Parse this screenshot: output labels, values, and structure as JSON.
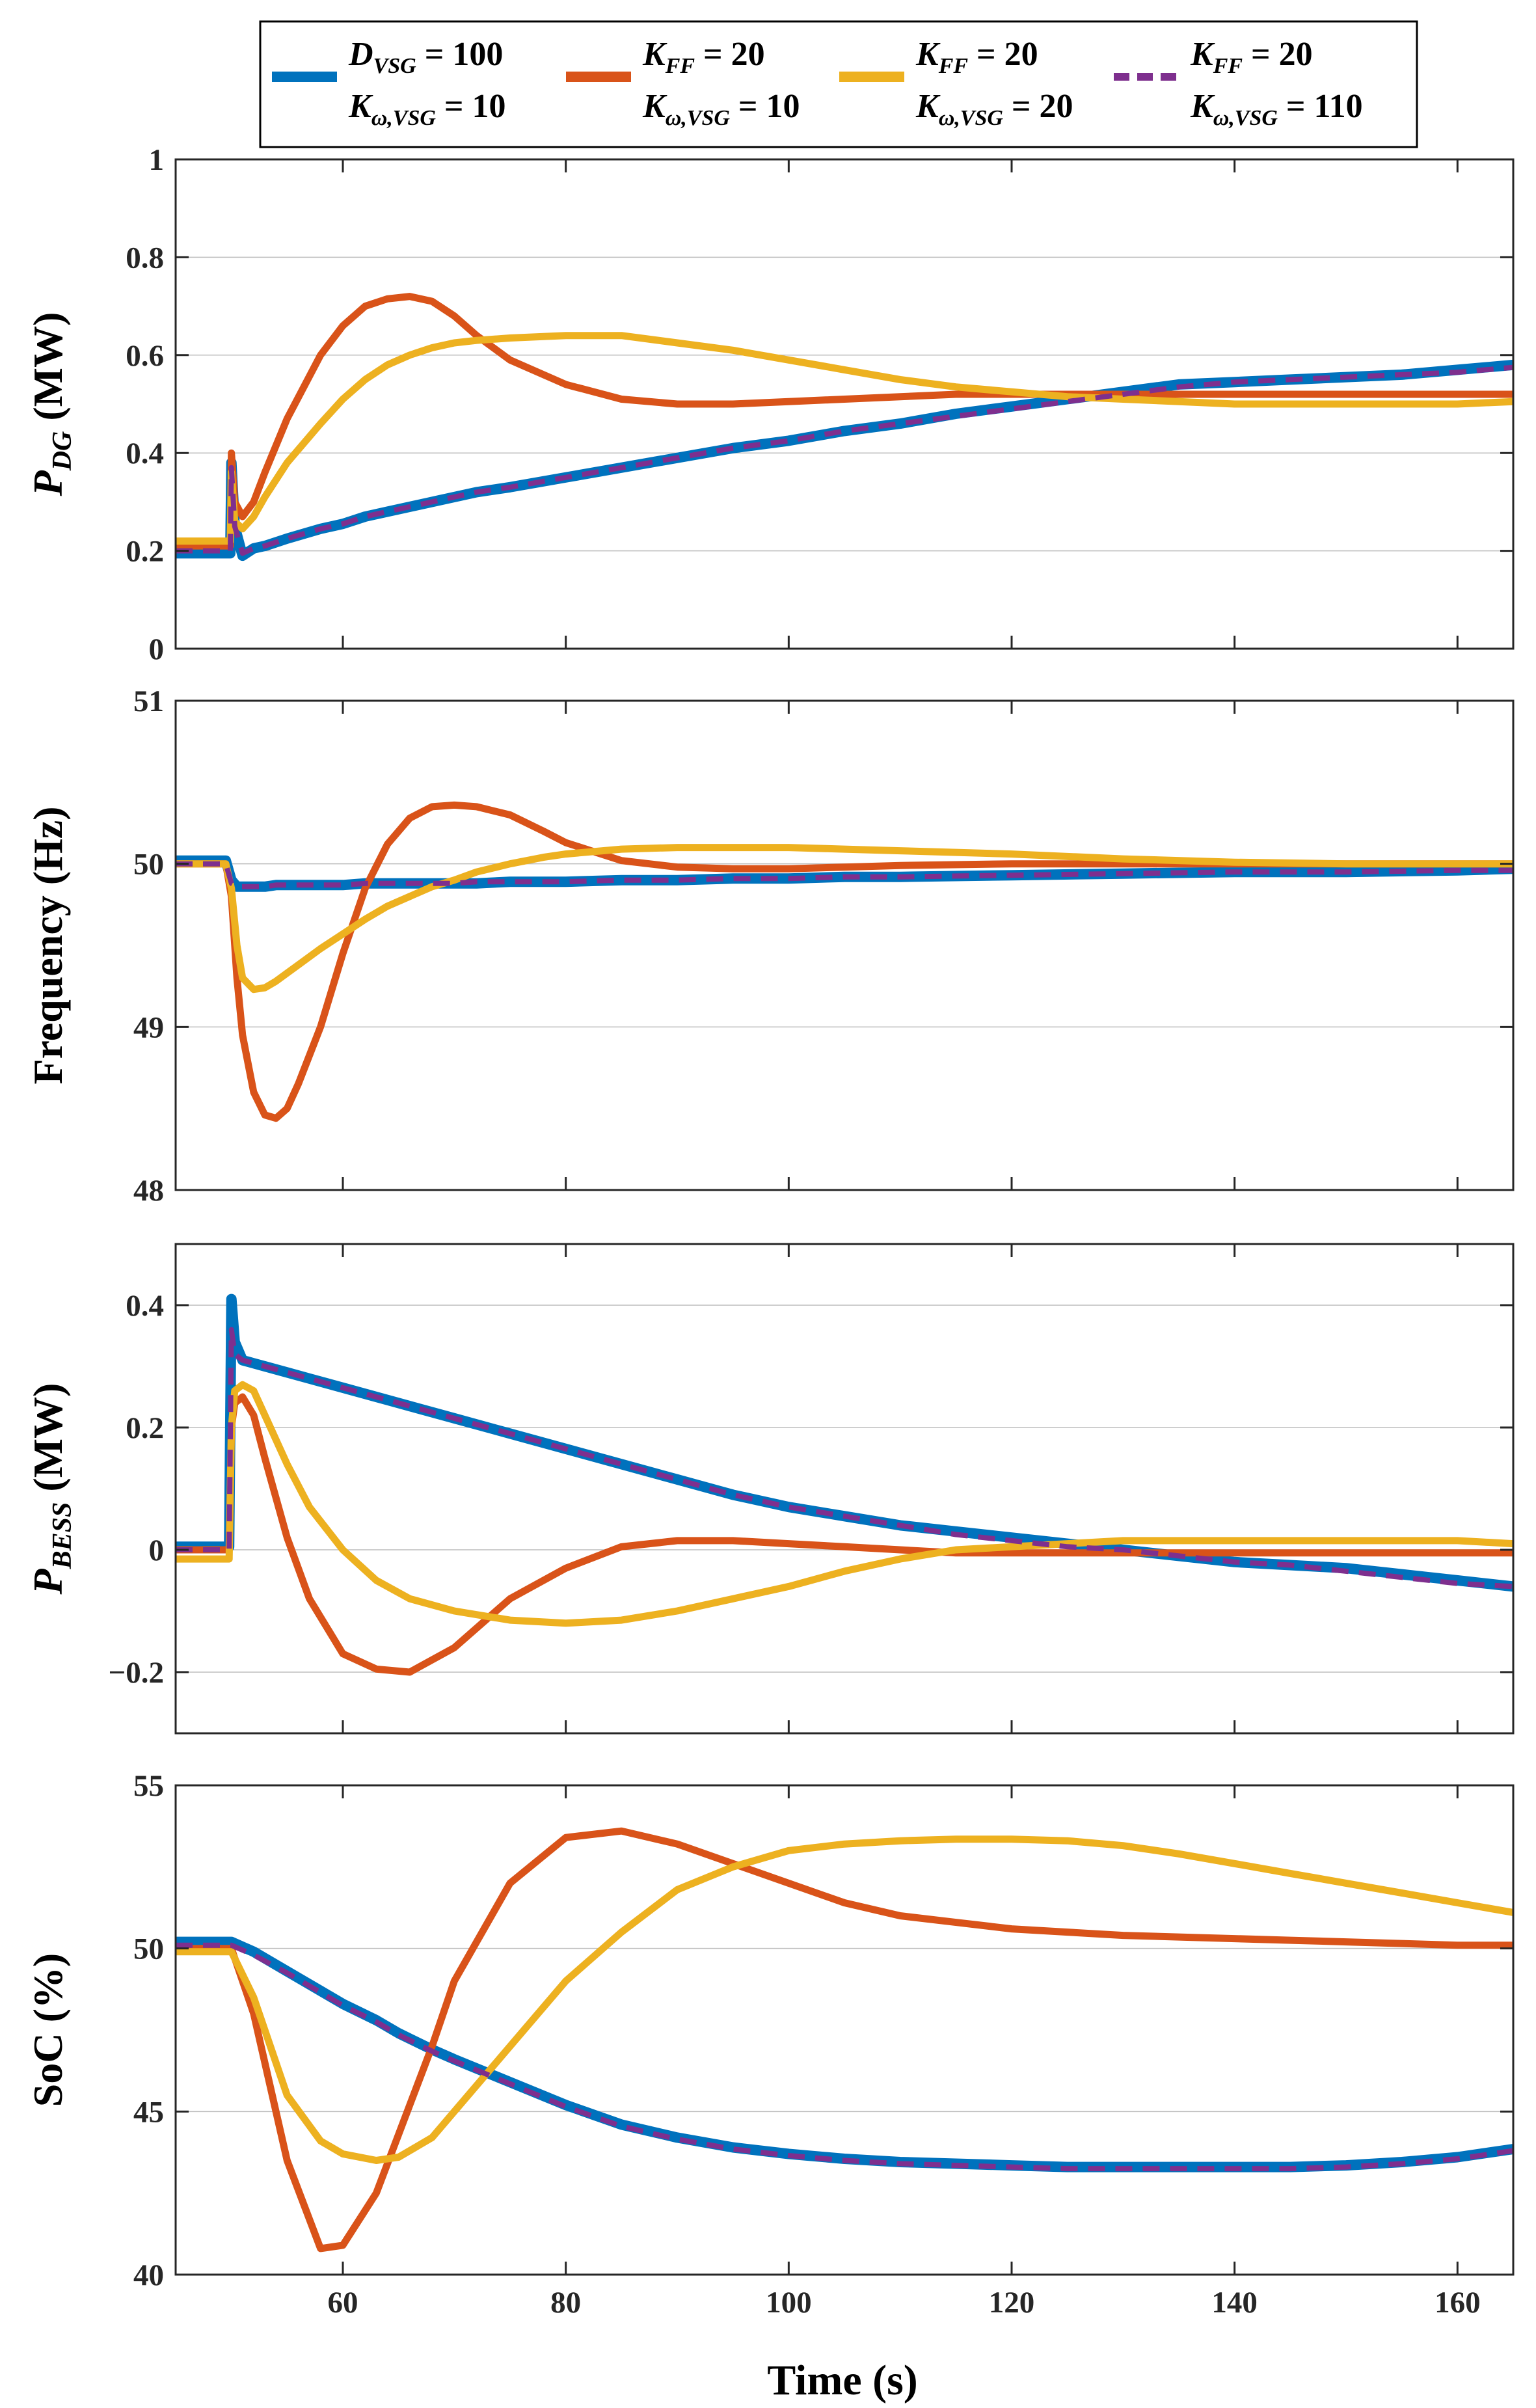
{
  "legend": [
    {
      "name": "D_VSG = 100, K_ω,VSG = 10",
      "line1": {
        "sym": "D",
        "sub": "VSG",
        "rest": " = 100"
      },
      "line2": {
        "sym": "K",
        "sub": "ω,VSG",
        "rest": " = 10"
      },
      "color": "#0072BD",
      "style": "solid"
    },
    {
      "name": "K_FF = 20, K_ω,VSG = 10",
      "line1": {
        "sym": "K",
        "sub": "FF",
        "rest": " = 20"
      },
      "line2": {
        "sym": "K",
        "sub": "ω,VSG",
        "rest": " = 10"
      },
      "color": "#D95319",
      "style": "solid"
    },
    {
      "name": "K_FF = 20, K_ω,VSG = 20",
      "line1": {
        "sym": "K",
        "sub": "FF",
        "rest": " = 20"
      },
      "line2": {
        "sym": "K",
        "sub": "ω,VSG",
        "rest": " = 20"
      },
      "color": "#EDB120",
      "style": "solid"
    },
    {
      "name": "K_FF = 20, K_ω,VSG = 110",
      "line1": {
        "sym": "K",
        "sub": "FF",
        "rest": " = 20"
      },
      "line2": {
        "sym": "K",
        "sub": "ω,VSG",
        "rest": " = 110"
      },
      "color": "#7E2F8E",
      "style": "dashed"
    }
  ],
  "chart_data": [
    {
      "type": "line",
      "ylabel": {
        "sym": "P",
        "sub": "DG",
        "rest": " (MW)"
      },
      "ylim": [
        0,
        1
      ],
      "yticks": [
        0,
        0.2,
        0.4,
        0.6,
        0.8,
        1
      ],
      "ytick_labels": [
        "0",
        "0.2",
        "0.4",
        "0.6",
        "0.8",
        "1"
      ],
      "xlim": [
        45,
        165
      ],
      "x": [
        45,
        49.9,
        50,
        50.3,
        51,
        52,
        53,
        55,
        58,
        60,
        62,
        64,
        66,
        68,
        70,
        72,
        75,
        80,
        85,
        90,
        95,
        100,
        105,
        110,
        115,
        120,
        125,
        130,
        135,
        140,
        145,
        150,
        155,
        160,
        165
      ],
      "series": [
        {
          "name": "D_VSG = 100, K_ω,VSG = 10",
          "values": [
            0.195,
            0.195,
            0.38,
            0.25,
            0.19,
            0.205,
            0.21,
            0.225,
            0.245,
            0.255,
            0.27,
            0.28,
            0.29,
            0.3,
            0.31,
            0.32,
            0.33,
            0.35,
            0.37,
            0.39,
            0.41,
            0.425,
            0.445,
            0.46,
            0.48,
            0.495,
            0.51,
            0.525,
            0.54,
            0.545,
            0.55,
            0.555,
            0.56,
            0.57,
            0.58
          ]
        },
        {
          "name": "K_FF = 20, K_ω,VSG = 10",
          "values": [
            0.21,
            0.21,
            0.4,
            0.3,
            0.27,
            0.3,
            0.36,
            0.47,
            0.6,
            0.66,
            0.7,
            0.715,
            0.72,
            0.71,
            0.68,
            0.64,
            0.59,
            0.54,
            0.51,
            0.5,
            0.5,
            0.505,
            0.51,
            0.515,
            0.52,
            0.52,
            0.52,
            0.52,
            0.52,
            0.52,
            0.52,
            0.52,
            0.52,
            0.52,
            0.52
          ]
        },
        {
          "name": "K_FF = 20, K_ω,VSG = 20",
          "values": [
            0.22,
            0.22,
            0.36,
            0.26,
            0.245,
            0.27,
            0.31,
            0.38,
            0.46,
            0.51,
            0.55,
            0.58,
            0.6,
            0.615,
            0.625,
            0.63,
            0.635,
            0.64,
            0.64,
            0.625,
            0.61,
            0.59,
            0.57,
            0.55,
            0.535,
            0.525,
            0.515,
            0.51,
            0.505,
            0.5,
            0.5,
            0.5,
            0.5,
            0.5,
            0.505
          ]
        },
        {
          "name": "K_FF = 20, K_ω,VSG = 110",
          "values": [
            0.2,
            0.2,
            0.37,
            0.25,
            0.195,
            0.205,
            0.21,
            0.225,
            0.245,
            0.255,
            0.27,
            0.28,
            0.29,
            0.3,
            0.31,
            0.32,
            0.33,
            0.35,
            0.37,
            0.39,
            0.41,
            0.425,
            0.445,
            0.46,
            0.475,
            0.49,
            0.505,
            0.52,
            0.535,
            0.545,
            0.55,
            0.555,
            0.56,
            0.565,
            0.575
          ]
        }
      ]
    },
    {
      "type": "line",
      "ylabel": {
        "sym": "",
        "sub": "",
        "rest": "Frequency (Hz)"
      },
      "ylim": [
        48,
        51
      ],
      "yticks": [
        48,
        49,
        50,
        51
      ],
      "ytick_labels": [
        "48",
        "49",
        "50",
        "51"
      ],
      "xlim": [
        45,
        165
      ],
      "x": [
        45,
        49.5,
        50,
        50.5,
        51,
        52,
        53,
        54,
        55,
        56,
        58,
        60,
        62,
        64,
        66,
        68,
        70,
        72,
        75,
        78,
        80,
        85,
        90,
        95,
        100,
        105,
        110,
        120,
        130,
        140,
        150,
        160,
        165
      ],
      "series": [
        {
          "name": "D_VSG = 100, K_ω,VSG = 10",
          "values": [
            50.02,
            50.02,
            49.9,
            49.86,
            49.86,
            49.86,
            49.86,
            49.87,
            49.87,
            49.87,
            49.87,
            49.87,
            49.88,
            49.88,
            49.88,
            49.88,
            49.88,
            49.88,
            49.89,
            49.89,
            49.89,
            49.9,
            49.9,
            49.91,
            49.91,
            49.92,
            49.92,
            49.93,
            49.94,
            49.95,
            49.95,
            49.96,
            49.97
          ]
        },
        {
          "name": "K_FF = 20, K_ω,VSG = 10",
          "values": [
            50.0,
            50.0,
            49.8,
            49.3,
            48.95,
            48.6,
            48.46,
            48.44,
            48.5,
            48.65,
            49.0,
            49.45,
            49.85,
            50.12,
            50.28,
            50.35,
            50.36,
            50.35,
            50.3,
            50.2,
            50.13,
            50.02,
            49.98,
            49.97,
            49.97,
            49.98,
            49.99,
            50.0,
            50.0,
            50.0,
            50.0,
            50.0,
            50.0
          ]
        },
        {
          "name": "K_FF = 20, K_ω,VSG = 20",
          "values": [
            50.0,
            50.0,
            49.85,
            49.5,
            49.3,
            49.23,
            49.24,
            49.28,
            49.33,
            49.38,
            49.48,
            49.57,
            49.66,
            49.74,
            49.8,
            49.86,
            49.9,
            49.95,
            50.0,
            50.04,
            50.06,
            50.09,
            50.1,
            50.1,
            50.1,
            50.09,
            50.08,
            50.06,
            50.03,
            50.01,
            50.0,
            50.0,
            50.0
          ]
        },
        {
          "name": "K_FF = 20, K_ω,VSG = 110",
          "values": [
            50.0,
            50.0,
            49.88,
            49.86,
            49.86,
            49.86,
            49.86,
            49.87,
            49.87,
            49.87,
            49.87,
            49.87,
            49.88,
            49.88,
            49.88,
            49.88,
            49.88,
            49.89,
            49.89,
            49.89,
            49.89,
            49.9,
            49.9,
            49.91,
            49.91,
            49.92,
            49.92,
            49.93,
            49.94,
            49.95,
            49.95,
            49.96,
            49.96
          ]
        }
      ]
    },
    {
      "type": "line",
      "ylabel": {
        "sym": "P",
        "sub": "BESS",
        "rest": " (MW)"
      },
      "ylim": [
        -0.3,
        0.5
      ],
      "yticks": [
        -0.2,
        0,
        0.2,
        0.4
      ],
      "ytick_labels": [
        "−0.2",
        "0",
        "0.2",
        "0.4"
      ],
      "xlim": [
        45,
        165
      ],
      "x": [
        45,
        49.8,
        50,
        50.3,
        51,
        52,
        53,
        55,
        57,
        60,
        63,
        66,
        70,
        75,
        80,
        85,
        90,
        95,
        100,
        105,
        110,
        115,
        120,
        125,
        130,
        135,
        140,
        145,
        150,
        155,
        160,
        165
      ],
      "series": [
        {
          "name": "D_VSG = 100, K_ω,VSG = 10",
          "values": [
            0.005,
            0.005,
            0.41,
            0.34,
            0.31,
            0.305,
            0.3,
            0.29,
            0.28,
            0.265,
            0.25,
            0.235,
            0.215,
            0.19,
            0.165,
            0.14,
            0.115,
            0.09,
            0.07,
            0.055,
            0.04,
            0.03,
            0.02,
            0.01,
            0.0,
            -0.01,
            -0.02,
            -0.025,
            -0.03,
            -0.04,
            -0.05,
            -0.06
          ]
        },
        {
          "name": "K_FF = 20, K_ω,VSG = 10",
          "values": [
            0.0,
            0.0,
            0.2,
            0.24,
            0.25,
            0.22,
            0.15,
            0.02,
            -0.08,
            -0.17,
            -0.195,
            -0.2,
            -0.16,
            -0.08,
            -0.03,
            0.005,
            0.015,
            0.015,
            0.01,
            0.005,
            0.0,
            -0.005,
            -0.005,
            -0.005,
            -0.005,
            -0.005,
            -0.005,
            -0.005,
            -0.005,
            -0.005,
            -0.005,
            -0.005
          ]
        },
        {
          "name": "K_FF = 20, K_ω,VSG = 20",
          "values": [
            -0.015,
            -0.015,
            0.2,
            0.26,
            0.27,
            0.26,
            0.22,
            0.14,
            0.07,
            0.0,
            -0.05,
            -0.08,
            -0.1,
            -0.115,
            -0.12,
            -0.115,
            -0.1,
            -0.08,
            -0.06,
            -0.035,
            -0.015,
            0.0,
            0.005,
            0.01,
            0.015,
            0.015,
            0.015,
            0.015,
            0.015,
            0.015,
            0.015,
            0.01
          ]
        },
        {
          "name": "K_FF = 20, K_ω,VSG = 110",
          "values": [
            0.0,
            0.0,
            0.36,
            0.32,
            0.31,
            0.305,
            0.3,
            0.29,
            0.28,
            0.265,
            0.25,
            0.235,
            0.215,
            0.19,
            0.165,
            0.14,
            0.115,
            0.09,
            0.07,
            0.055,
            0.04,
            0.025,
            0.015,
            0.005,
            0.0,
            -0.01,
            -0.02,
            -0.025,
            -0.035,
            -0.045,
            -0.055,
            -0.06
          ]
        }
      ]
    },
    {
      "type": "line",
      "ylabel": {
        "sym": "",
        "sub": "",
        "rest": "SoC (%)"
      },
      "ylim": [
        40,
        55
      ],
      "yticks": [
        40,
        45,
        50,
        55
      ],
      "ytick_labels": [
        "40",
        "45",
        "50",
        "55"
      ],
      "xlim": [
        45,
        165
      ],
      "x": [
        45,
        50,
        52,
        55,
        58,
        60,
        63,
        65,
        68,
        70,
        75,
        80,
        85,
        90,
        95,
        100,
        105,
        110,
        115,
        120,
        125,
        130,
        135,
        140,
        145,
        150,
        155,
        160,
        165
      ],
      "series": [
        {
          "name": "D_VSG = 100, K_ω,VSG = 10",
          "values": [
            50.2,
            50.2,
            49.9,
            49.3,
            48.7,
            48.3,
            47.8,
            47.4,
            46.9,
            46.6,
            45.9,
            45.2,
            44.6,
            44.2,
            43.9,
            43.7,
            43.55,
            43.45,
            43.4,
            43.35,
            43.3,
            43.3,
            43.3,
            43.3,
            43.3,
            43.35,
            43.45,
            43.6,
            43.85
          ]
        },
        {
          "name": "K_FF = 20, K_ω,VSG = 10",
          "values": [
            50.0,
            50.0,
            48.0,
            43.5,
            40.8,
            40.9,
            42.5,
            44.3,
            47.0,
            49.0,
            52.0,
            53.4,
            53.6,
            53.2,
            52.6,
            52.0,
            51.4,
            51.0,
            50.8,
            50.6,
            50.5,
            50.4,
            50.35,
            50.3,
            50.25,
            50.2,
            50.15,
            50.1,
            50.1
          ]
        },
        {
          "name": "K_FF = 20, K_ω,VSG = 20",
          "values": [
            49.9,
            49.9,
            48.5,
            45.5,
            44.1,
            43.7,
            43.5,
            43.6,
            44.2,
            45.0,
            47.0,
            49.0,
            50.5,
            51.8,
            52.5,
            53.0,
            53.2,
            53.3,
            53.35,
            53.35,
            53.3,
            53.15,
            52.9,
            52.6,
            52.3,
            52.0,
            51.7,
            51.4,
            51.1
          ]
        },
        {
          "name": "K_FF = 20, K_ω,VSG = 110",
          "values": [
            50.1,
            50.1,
            49.8,
            49.25,
            48.65,
            48.25,
            47.75,
            47.35,
            46.85,
            46.55,
            45.85,
            45.15,
            44.55,
            44.15,
            43.85,
            43.65,
            43.5,
            43.4,
            43.35,
            43.3,
            43.25,
            43.25,
            43.25,
            43.25,
            43.25,
            43.3,
            43.4,
            43.55,
            43.8
          ]
        }
      ]
    }
  ],
  "xaxis": {
    "xlabel": "Time (s)",
    "xticks": [
      60,
      80,
      100,
      120,
      140,
      160
    ],
    "xtick_labels": [
      "60",
      "80",
      "100",
      "120",
      "140",
      "160"
    ]
  }
}
